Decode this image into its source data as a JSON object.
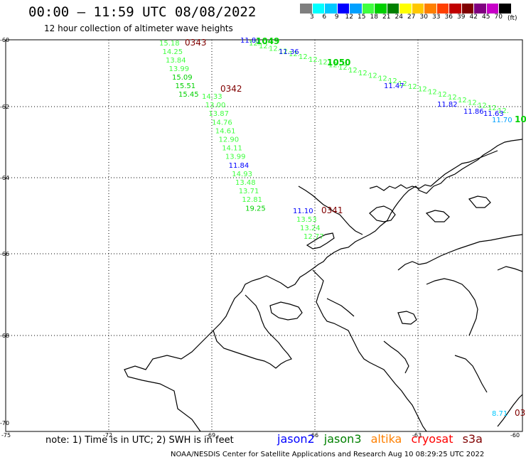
{
  "title": "00:00 – 11:59 UTC 08/08/2022",
  "subtitle": "12 hour collection of altimeter wave heights",
  "scale": {
    "unit": "(ft)",
    "colors": [
      "#7f7f7f",
      "#00ffff",
      "#00c8ff",
      "#0000ff",
      "#00a0ff",
      "#40ff40",
      "#00d000",
      "#008000",
      "#ffff00",
      "#ffc800",
      "#ff8000",
      "#ff4000",
      "#c00000",
      "#800000",
      "#800080",
      "#c800c8",
      "#000000"
    ],
    "labels": [
      "3",
      "6",
      "9",
      "12",
      "15",
      "18",
      "21",
      "24",
      "27",
      "30",
      "33",
      "36",
      "39",
      "42",
      "45",
      "70"
    ]
  },
  "axes": {
    "lat_labels": [
      "-60",
      "-62",
      "-64",
      "-66",
      "-68",
      "-70"
    ],
    "lon_labels": [
      "-75",
      "-72",
      "-69",
      "-66",
      "-63",
      "-60"
    ]
  },
  "tracks": [
    {
      "id": "0343",
      "time": "0343",
      "color": "#800000",
      "points": [
        {
          "v": "15.18",
          "c": "#40ff40"
        },
        {
          "v": "14.25",
          "c": "#40ff40"
        },
        {
          "v": "13.84",
          "c": "#40ff40"
        },
        {
          "v": "13.99",
          "c": "#40ff40"
        },
        {
          "v": "15.09",
          "c": "#00d000"
        },
        {
          "v": "15.51",
          "c": "#00d000"
        },
        {
          "v": "15.45",
          "c": "#00d000"
        }
      ]
    },
    {
      "id": "0342",
      "time": "0342",
      "color": "#800000",
      "points": [
        {
          "v": "14.33",
          "c": "#40ff40"
        },
        {
          "v": "13.00",
          "c": "#40ff40"
        },
        {
          "v": "13.87",
          "c": "#40ff40"
        },
        {
          "v": "14.76",
          "c": "#40ff40"
        },
        {
          "v": "14.61",
          "c": "#40ff40"
        },
        {
          "v": "12.90",
          "c": "#40ff40"
        },
        {
          "v": "14.11",
          "c": "#40ff40"
        },
        {
          "v": "13.99",
          "c": "#40ff40"
        },
        {
          "v": "11.84",
          "c": "#0000ff"
        },
        {
          "v": "14.93",
          "c": "#40ff40"
        },
        {
          "v": "13.48",
          "c": "#40ff40"
        },
        {
          "v": "13.71",
          "c": "#40ff40"
        },
        {
          "v": "12.81",
          "c": "#40ff40"
        },
        {
          "v": "19.25",
          "c": "#00d000"
        }
      ]
    },
    {
      "id": "0341",
      "time": "0341",
      "color": "#800000",
      "points": [
        {
          "v": "11.10",
          "c": "#0000ff"
        },
        {
          "v": "13.53",
          "c": "#40ff40"
        },
        {
          "v": "13.24",
          "c": "#40ff40"
        },
        {
          "v": "12.77",
          "c": "#40ff40"
        }
      ]
    },
    {
      "id": "ne-track",
      "time": "1050",
      "color": "#00d000",
      "points": [
        {
          "v": "11.81",
          "c": "#0000ff"
        },
        {
          "v": "11.36",
          "c": "#0000ff"
        },
        {
          "v": "11.47",
          "c": "#0000ff"
        },
        {
          "v": "11.82",
          "c": "#0000ff"
        },
        {
          "v": "11.86",
          "c": "#0000ff"
        },
        {
          "v": "11.63",
          "c": "#0000ff"
        },
        {
          "v": "11.70",
          "c": "#00a0ff"
        }
      ]
    }
  ],
  "extra_labels": [
    {
      "text": "1049",
      "c": "#00d000"
    },
    {
      "text": "1050",
      "c": "#00d000"
    },
    {
      "text": "10",
      "c": "#00d000"
    },
    {
      "text": "8.71",
      "c": "#00c8ff"
    },
    {
      "text": "03",
      "c": "#800000"
    }
  ],
  "footer_note": "note:  1) Time is in UTC;  2) SWH is in feet",
  "legend": [
    {
      "name": "jason2",
      "color": "#0000ff"
    },
    {
      "name": "jason3",
      "color": "#008000"
    },
    {
      "name": "altika",
      "color": "#ff8000"
    },
    {
      "name": "cryosat",
      "color": "#ff0000"
    },
    {
      "name": "s3a",
      "color": "#800000"
    }
  ],
  "credit": "NOAA/NESDIS Center for Satellite Applications and Research     Aug 10 08:29:25 UTC 2022"
}
